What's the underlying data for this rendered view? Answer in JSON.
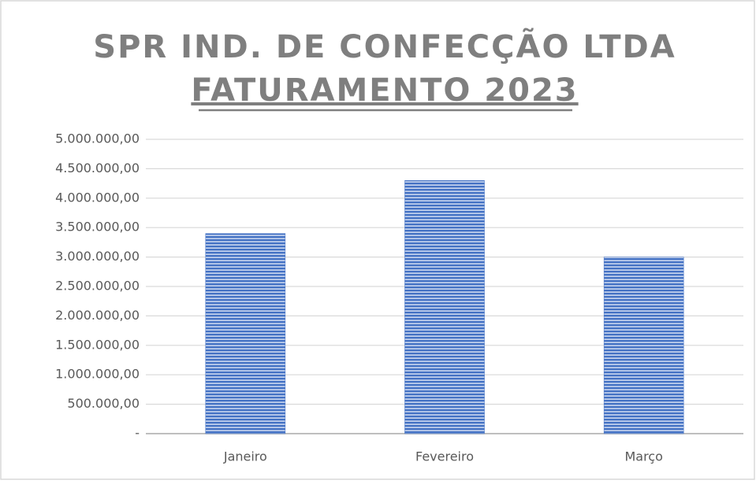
{
  "chart_data": {
    "type": "bar",
    "title": "SPR IND. DE CONFECÇÃO LTDA",
    "subtitle": "FATURAMENTO 2023",
    "categories": [
      "Janeiro",
      "Fevereiro",
      "Março"
    ],
    "values": [
      3400000,
      4300000,
      3000000
    ],
    "color": "#4472c4",
    "ylim": [
      0,
      5000000
    ],
    "yticks": [
      {
        "value": 0,
        "label": "-"
      },
      {
        "value": 500000,
        "label": "500.000,00"
      },
      {
        "value": 1000000,
        "label": "1.000.000,00"
      },
      {
        "value": 1500000,
        "label": "1.500.000,00"
      },
      {
        "value": 2000000,
        "label": "2.000.000,00"
      },
      {
        "value": 2500000,
        "label": "2.500.000,00"
      },
      {
        "value": 3000000,
        "label": "3.000.000,00"
      },
      {
        "value": 3500000,
        "label": "3.500.000,00"
      },
      {
        "value": 4000000,
        "label": "4.000.000,00"
      },
      {
        "value": 4500000,
        "label": "4.500.000,00"
      },
      {
        "value": 5000000,
        "label": "5.000.000,00"
      }
    ],
    "grid": true
  }
}
